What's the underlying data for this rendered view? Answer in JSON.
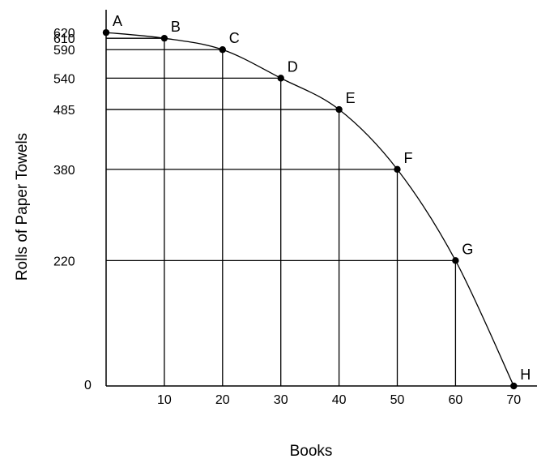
{
  "chart_data": {
    "type": "line",
    "title": "",
    "xlabel": "Books",
    "ylabel": "Rolls of Paper Towels",
    "origin_label": "0",
    "xlim": [
      0,
      70
    ],
    "ylim": [
      0,
      620
    ],
    "x_ticks": [
      "10",
      "20",
      "30",
      "40",
      "50",
      "60",
      "70"
    ],
    "y_ticks": [
      "620",
      "610",
      "590",
      "540",
      "485",
      "380",
      "220"
    ],
    "grid": "drop lines from each point to both axes",
    "points": [
      {
        "label": "A",
        "x": 0,
        "y": 620
      },
      {
        "label": "B",
        "x": 10,
        "y": 610
      },
      {
        "label": "C",
        "x": 20,
        "y": 590
      },
      {
        "label": "D",
        "x": 30,
        "y": 540
      },
      {
        "label": "E",
        "x": 40,
        "y": 485
      },
      {
        "label": "F",
        "x": 50,
        "y": 380
      },
      {
        "label": "G",
        "x": 60,
        "y": 220
      },
      {
        "label": "H",
        "x": 70,
        "y": 0
      }
    ],
    "colors": {
      "line": "#000000",
      "points": "#000000"
    }
  }
}
